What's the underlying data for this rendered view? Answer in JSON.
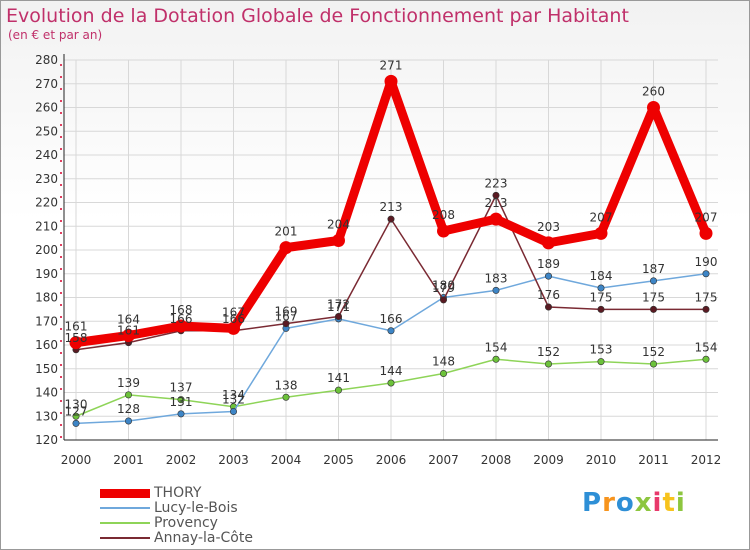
{
  "title": "Evolution de la Dotation Globale de Fonctionnement par Habitant",
  "subtitle": "(en € et par an)",
  "logo": {
    "text": "Proxiti",
    "colors": [
      "#2e8fd6",
      "#f7941d",
      "#2e8fd6",
      "#8dc63f",
      "#e8396b",
      "#f7c31d",
      "#8dc63f"
    ]
  },
  "chart_data": {
    "type": "line",
    "title": "Evolution de la Dotation Globale de Fonctionnement par Habitant",
    "subtitle": "(en € et par an)",
    "xlabel": "",
    "ylabel": "",
    "x": [
      "2000",
      "2001",
      "2002",
      "2003",
      "2004",
      "2005",
      "2006",
      "2007",
      "2008",
      "2009",
      "2010",
      "2011",
      "2012"
    ],
    "ylim": [
      120,
      280
    ],
    "yticks": [
      120,
      130,
      140,
      150,
      160,
      170,
      180,
      190,
      200,
      210,
      220,
      230,
      240,
      250,
      260,
      270,
      280
    ],
    "grid": true,
    "legend": "bottom-left",
    "series": [
      {
        "name": "Provency",
        "color": "#8ed458",
        "dot": "#6cc23a",
        "values": [
          130,
          139,
          137,
          134,
          138,
          141,
          144,
          148,
          154,
          152,
          153,
          152,
          154
        ]
      },
      {
        "name": "Lucy-le-Bois",
        "color": "#6fa8dc",
        "dot": "#3d85c6",
        "values": [
          127,
          128,
          131,
          132,
          167,
          171,
          166,
          180,
          183,
          189,
          184,
          187,
          190
        ]
      },
      {
        "name": "Annay-la-Côte",
        "color": "#7a2a33",
        "dot": "#5a1a22",
        "values": [
          158,
          161,
          166,
          166,
          169,
          172,
          213,
          179,
          223,
          176,
          175,
          175,
          175
        ]
      },
      {
        "name": "THORY",
        "color": "#ee0000",
        "dot": "#ee0000",
        "values": [
          161,
          164,
          168,
          167,
          201,
          204,
          271,
          208,
          213,
          203,
          207,
          260,
          207
        ]
      }
    ],
    "legend_order": [
      "THORY",
      "Lucy-le-Bois",
      "Provency",
      "Annay-la-Côte"
    ]
  }
}
